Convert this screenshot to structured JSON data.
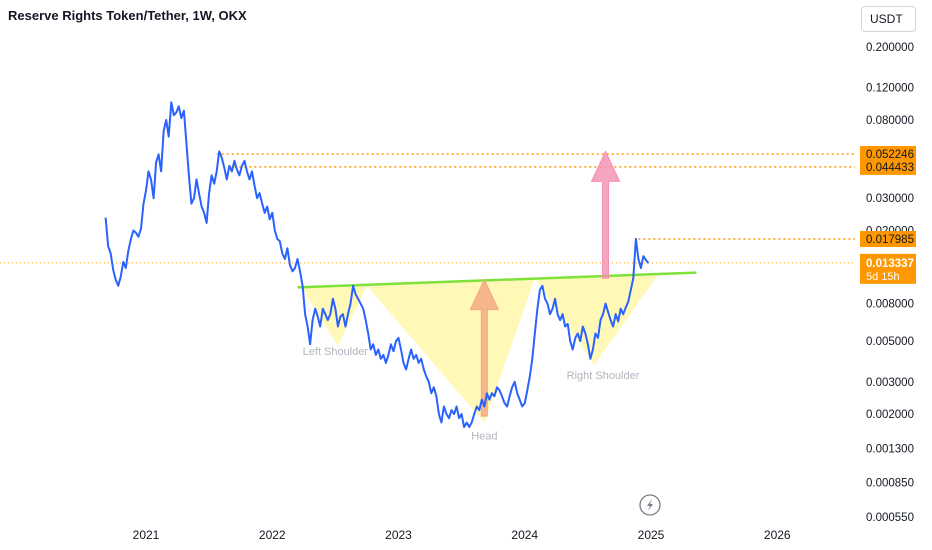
{
  "header": {
    "title": "Reserve Rights Token/Tether, 1W, OKX",
    "currency": "USDT"
  },
  "colors": {
    "price_line": "#2962ff",
    "neckline": "#7ee23a",
    "pattern_fill": "#fff59d",
    "level_line": "#ff9800",
    "target_arrow": "#f48fb1",
    "head_arrow": "#f4a582",
    "text_muted": "#b2b5be"
  },
  "price_badge_countdown": "5d 15h",
  "chart_data": {
    "type": "line",
    "y_scale": "log",
    "ylim": [
      0.00055,
      0.2
    ],
    "y_ticks": [
      "0.200000",
      "0.120000",
      "0.080000",
      "0.030000",
      "0.020000",
      "0.008000",
      "0.005000",
      "0.003000",
      "0.002000",
      "0.001300",
      "0.000850",
      "0.000550"
    ],
    "x_ticks": [
      "2021",
      "2022",
      "2023",
      "2024",
      "2025",
      "2026"
    ],
    "series": [
      {
        "values": [
          [
            2020.68,
            0.0235
          ],
          [
            2020.7,
            0.0165
          ],
          [
            2020.72,
            0.015
          ],
          [
            2020.74,
            0.0122
          ],
          [
            2020.76,
            0.0108
          ],
          [
            2020.78,
            0.01
          ],
          [
            2020.8,
            0.0112
          ],
          [
            2020.82,
            0.0135
          ],
          [
            2020.84,
            0.0125
          ],
          [
            2020.86,
            0.0155
          ],
          [
            2020.88,
            0.018
          ],
          [
            2020.9,
            0.02
          ],
          [
            2020.92,
            0.0195
          ],
          [
            2020.94,
            0.0185
          ],
          [
            2020.96,
            0.0205
          ],
          [
            2020.98,
            0.028
          ],
          [
            2021.0,
            0.033
          ],
          [
            2021.02,
            0.042
          ],
          [
            2021.04,
            0.038
          ],
          [
            2021.06,
            0.03
          ],
          [
            2021.08,
            0.047
          ],
          [
            2021.1,
            0.052
          ],
          [
            2021.12,
            0.042
          ],
          [
            2021.14,
            0.07
          ],
          [
            2021.16,
            0.08
          ],
          [
            2021.18,
            0.065
          ],
          [
            2021.2,
            0.1
          ],
          [
            2021.22,
            0.085
          ],
          [
            2021.24,
            0.088
          ],
          [
            2021.26,
            0.095
          ],
          [
            2021.28,
            0.082
          ],
          [
            2021.3,
            0.09
          ],
          [
            2021.32,
            0.06
          ],
          [
            2021.34,
            0.04
          ],
          [
            2021.36,
            0.028
          ],
          [
            2021.38,
            0.03
          ],
          [
            2021.4,
            0.038
          ],
          [
            2021.42,
            0.032
          ],
          [
            2021.44,
            0.027
          ],
          [
            2021.46,
            0.025
          ],
          [
            2021.48,
            0.022
          ],
          [
            2021.5,
            0.032
          ],
          [
            2021.52,
            0.04
          ],
          [
            2021.54,
            0.036
          ],
          [
            2021.56,
            0.042
          ],
          [
            2021.58,
            0.054
          ],
          [
            2021.6,
            0.05
          ],
          [
            2021.62,
            0.044
          ],
          [
            2021.64,
            0.038
          ],
          [
            2021.66,
            0.045
          ],
          [
            2021.68,
            0.042
          ],
          [
            2021.7,
            0.048
          ],
          [
            2021.72,
            0.043
          ],
          [
            2021.74,
            0.04
          ],
          [
            2021.76,
            0.045
          ],
          [
            2021.78,
            0.048
          ],
          [
            2021.8,
            0.042
          ],
          [
            2021.82,
            0.038
          ],
          [
            2021.84,
            0.042
          ],
          [
            2021.86,
            0.035
          ],
          [
            2021.88,
            0.03
          ],
          [
            2021.9,
            0.032
          ],
          [
            2021.92,
            0.028
          ],
          [
            2021.94,
            0.025
          ],
          [
            2021.96,
            0.027
          ],
          [
            2021.98,
            0.023
          ],
          [
            2022.0,
            0.025
          ],
          [
            2022.02,
            0.02
          ],
          [
            2022.04,
            0.018
          ],
          [
            2022.06,
            0.0175
          ],
          [
            2022.08,
            0.015
          ],
          [
            2022.1,
            0.014
          ],
          [
            2022.12,
            0.016
          ],
          [
            2022.14,
            0.013
          ],
          [
            2022.16,
            0.012
          ],
          [
            2022.18,
            0.0125
          ],
          [
            2022.2,
            0.014
          ],
          [
            2022.22,
            0.012
          ],
          [
            2022.24,
            0.01
          ],
          [
            2022.26,
            0.007
          ],
          [
            2022.28,
            0.006
          ],
          [
            2022.3,
            0.0048
          ],
          [
            2022.32,
            0.0065
          ],
          [
            2022.34,
            0.0075
          ],
          [
            2022.36,
            0.0068
          ],
          [
            2022.38,
            0.006
          ],
          [
            2022.4,
            0.0075
          ],
          [
            2022.42,
            0.007
          ],
          [
            2022.44,
            0.0065
          ],
          [
            2022.46,
            0.007
          ],
          [
            2022.48,
            0.0085
          ],
          [
            2022.5,
            0.0075
          ],
          [
            2022.52,
            0.006
          ],
          [
            2022.54,
            0.0068
          ],
          [
            2022.56,
            0.007
          ],
          [
            2022.58,
            0.006
          ],
          [
            2022.6,
            0.007
          ],
          [
            2022.62,
            0.008
          ],
          [
            2022.64,
            0.01
          ],
          [
            2022.66,
            0.009
          ],
          [
            2022.68,
            0.0085
          ],
          [
            2022.7,
            0.008
          ],
          [
            2022.72,
            0.0075
          ],
          [
            2022.74,
            0.0065
          ],
          [
            2022.76,
            0.0055
          ],
          [
            2022.78,
            0.0045
          ],
          [
            2022.8,
            0.0048
          ],
          [
            2022.82,
            0.0042
          ],
          [
            2022.84,
            0.0045
          ],
          [
            2022.86,
            0.004
          ],
          [
            2022.88,
            0.0042
          ],
          [
            2022.9,
            0.0038
          ],
          [
            2022.92,
            0.0042
          ],
          [
            2022.94,
            0.0048
          ],
          [
            2022.96,
            0.0044
          ],
          [
            2022.98,
            0.005
          ],
          [
            2023.0,
            0.0052
          ],
          [
            2023.02,
            0.0045
          ],
          [
            2023.04,
            0.0038
          ],
          [
            2023.06,
            0.0035
          ],
          [
            2023.08,
            0.004
          ],
          [
            2023.1,
            0.0045
          ],
          [
            2023.12,
            0.004
          ],
          [
            2023.14,
            0.0042
          ],
          [
            2023.16,
            0.0038
          ],
          [
            2023.18,
            0.004
          ],
          [
            2023.2,
            0.0035
          ],
          [
            2023.22,
            0.0032
          ],
          [
            2023.24,
            0.003
          ],
          [
            2023.26,
            0.0026
          ],
          [
            2023.28,
            0.0028
          ],
          [
            2023.3,
            0.0025
          ],
          [
            2023.32,
            0.002
          ],
          [
            2023.34,
            0.0018
          ],
          [
            2023.36,
            0.0022
          ],
          [
            2023.38,
            0.002
          ],
          [
            2023.4,
            0.0019
          ],
          [
            2023.42,
            0.0021
          ],
          [
            2023.44,
            0.002
          ],
          [
            2023.46,
            0.0022
          ],
          [
            2023.48,
            0.0019
          ],
          [
            2023.5,
            0.002
          ],
          [
            2023.52,
            0.0017
          ],
          [
            2023.54,
            0.0018
          ],
          [
            2023.56,
            0.0017
          ],
          [
            2023.58,
            0.0018
          ],
          [
            2023.6,
            0.002
          ],
          [
            2023.62,
            0.0022
          ],
          [
            2023.64,
            0.0021
          ],
          [
            2023.66,
            0.0024
          ],
          [
            2023.68,
            0.0022
          ],
          [
            2023.7,
            0.0026
          ],
          [
            2023.72,
            0.0024
          ],
          [
            2023.74,
            0.0026
          ],
          [
            2023.76,
            0.0025
          ],
          [
            2023.78,
            0.0028
          ],
          [
            2023.8,
            0.0027
          ],
          [
            2023.82,
            0.0025
          ],
          [
            2023.84,
            0.0023
          ],
          [
            2023.86,
            0.0022
          ],
          [
            2023.88,
            0.0025
          ],
          [
            2023.9,
            0.0028
          ],
          [
            2023.92,
            0.003
          ],
          [
            2023.94,
            0.0026
          ],
          [
            2023.96,
            0.0024
          ],
          [
            2023.98,
            0.0022
          ],
          [
            2024.0,
            0.0023
          ],
          [
            2024.02,
            0.0027
          ],
          [
            2024.04,
            0.0032
          ],
          [
            2024.06,
            0.004
          ],
          [
            2024.08,
            0.0055
          ],
          [
            2024.1,
            0.0075
          ],
          [
            2024.12,
            0.0095
          ],
          [
            2024.14,
            0.01
          ],
          [
            2024.16,
            0.0085
          ],
          [
            2024.18,
            0.008
          ],
          [
            2024.2,
            0.007
          ],
          [
            2024.22,
            0.0075
          ],
          [
            2024.24,
            0.0085
          ],
          [
            2024.26,
            0.007
          ],
          [
            2024.28,
            0.0065
          ],
          [
            2024.3,
            0.007
          ],
          [
            2024.32,
            0.006
          ],
          [
            2024.34,
            0.0062
          ],
          [
            2024.36,
            0.005
          ],
          [
            2024.38,
            0.0045
          ],
          [
            2024.4,
            0.0052
          ],
          [
            2024.42,
            0.0055
          ],
          [
            2024.44,
            0.005
          ],
          [
            2024.46,
            0.006
          ],
          [
            2024.48,
            0.0055
          ],
          [
            2024.5,
            0.0048
          ],
          [
            2024.52,
            0.004
          ],
          [
            2024.54,
            0.0045
          ],
          [
            2024.56,
            0.0055
          ],
          [
            2024.58,
            0.0052
          ],
          [
            2024.6,
            0.0065
          ],
          [
            2024.62,
            0.007
          ],
          [
            2024.64,
            0.008
          ],
          [
            2024.66,
            0.0072
          ],
          [
            2024.68,
            0.0065
          ],
          [
            2024.7,
            0.006
          ],
          [
            2024.72,
            0.007
          ],
          [
            2024.74,
            0.0064
          ],
          [
            2024.76,
            0.0075
          ],
          [
            2024.78,
            0.007
          ],
          [
            2024.8,
            0.0076
          ],
          [
            2024.82,
            0.0082
          ],
          [
            2024.84,
            0.0095
          ],
          [
            2024.86,
            0.011
          ],
          [
            2024.88,
            0.018
          ],
          [
            2024.9,
            0.014
          ],
          [
            2024.92,
            0.0125
          ],
          [
            2024.94,
            0.0145
          ],
          [
            2024.96,
            0.0138
          ],
          [
            2024.98,
            0.0133
          ]
        ]
      }
    ],
    "price_levels": [
      {
        "label": "0.052246",
        "value": 0.052246
      },
      {
        "label": "0.044433",
        "value": 0.044433
      },
      {
        "label": "0.017985",
        "value": 0.017985
      }
    ],
    "last_price": {
      "label": "0.013337",
      "value": 0.013337
    },
    "neckline": [
      [
        2022.2,
        0.0098
      ],
      [
        2025.36,
        0.0118
      ]
    ],
    "pattern_triangles": [
      [
        [
          2022.23,
          0.0098
        ],
        [
          2022.75,
          0.01
        ],
        [
          2022.52,
          0.0047
        ]
      ],
      [
        [
          2022.75,
          0.01
        ],
        [
          2024.08,
          0.011
        ],
        [
          2023.68,
          0.0018
        ]
      ],
      [
        [
          2024.08,
          0.011
        ],
        [
          2025.06,
          0.0116
        ],
        [
          2024.55,
          0.0037
        ]
      ]
    ],
    "arrows": [
      {
        "from": [
          2023.68,
          0.00195
        ],
        "to": [
          2023.68,
          0.0108
        ]
      },
      {
        "from": [
          2024.64,
          0.011
        ],
        "to": [
          2024.64,
          0.054
        ]
      }
    ],
    "annotations": [
      {
        "text": "Left Shoulder",
        "x": 2022.5,
        "y": 0.0042
      },
      {
        "text": "Head",
        "x": 2023.68,
        "y": 0.00145
      },
      {
        "text": "Right Shoulder",
        "x": 2024.62,
        "y": 0.0031
      }
    ]
  }
}
